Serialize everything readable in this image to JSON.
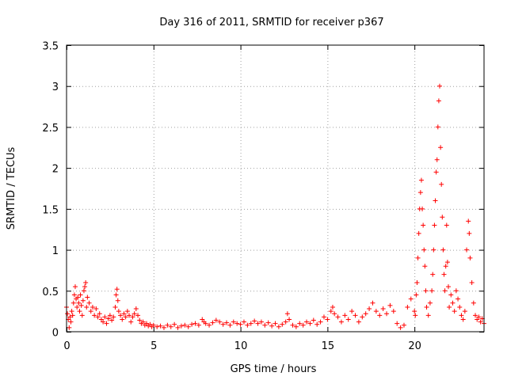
{
  "chart_data": {
    "type": "scatter",
    "title": "Day 316 of 2011, SRMTID for receiver p367",
    "xlabel": "GPS time / hours",
    "ylabel": "SRMTID / TECUs",
    "xlim": [
      0,
      24
    ],
    "ylim": [
      0,
      3.5
    ],
    "x_ticks": [
      0,
      5,
      10,
      15,
      20
    ],
    "x_tick_labels": [
      "0",
      "5",
      "10",
      "15",
      "20"
    ],
    "y_ticks": [
      0,
      0.5,
      1,
      1.5,
      2,
      2.5,
      3,
      3.5
    ],
    "y_tick_labels": [
      "0",
      "0.5",
      "1",
      "1.5",
      "2",
      "2.5",
      "3",
      "3.5"
    ],
    "grid": true,
    "marker": "+",
    "series": [
      {
        "name": "SRMTID",
        "color": "#ff0000",
        "points": [
          [
            0.0,
            0.3
          ],
          [
            0.05,
            0.22
          ],
          [
            0.1,
            0.15
          ],
          [
            0.15,
            0.05
          ],
          [
            0.2,
            0.18
          ],
          [
            0.25,
            0.12
          ],
          [
            0.3,
            0.25
          ],
          [
            0.35,
            0.2
          ],
          [
            0.4,
            0.35
          ],
          [
            0.45,
            0.45
          ],
          [
            0.5,
            0.55
          ],
          [
            0.55,
            0.4
          ],
          [
            0.6,
            0.3
          ],
          [
            0.65,
            0.42
          ],
          [
            0.7,
            0.35
          ],
          [
            0.75,
            0.25
          ],
          [
            0.8,
            0.45
          ],
          [
            0.85,
            0.32
          ],
          [
            0.9,
            0.2
          ],
          [
            0.95,
            0.38
          ],
          [
            1.0,
            0.5
          ],
          [
            1.05,
            0.55
          ],
          [
            1.1,
            0.6
          ],
          [
            1.15,
            0.3
          ],
          [
            1.2,
            0.42
          ],
          [
            1.3,
            0.35
          ],
          [
            1.4,
            0.25
          ],
          [
            1.5,
            0.3
          ],
          [
            1.6,
            0.2
          ],
          [
            1.7,
            0.28
          ],
          [
            1.8,
            0.18
          ],
          [
            1.9,
            0.22
          ],
          [
            2.0,
            0.15
          ],
          [
            2.1,
            0.12
          ],
          [
            2.2,
            0.18
          ],
          [
            2.3,
            0.1
          ],
          [
            2.4,
            0.16
          ],
          [
            2.5,
            0.2
          ],
          [
            2.6,
            0.14
          ],
          [
            2.7,
            0.18
          ],
          [
            2.8,
            0.3
          ],
          [
            2.85,
            0.45
          ],
          [
            2.9,
            0.52
          ],
          [
            2.95,
            0.38
          ],
          [
            3.0,
            0.25
          ],
          [
            3.1,
            0.2
          ],
          [
            3.2,
            0.15
          ],
          [
            3.3,
            0.22
          ],
          [
            3.4,
            0.18
          ],
          [
            3.5,
            0.25
          ],
          [
            3.6,
            0.2
          ],
          [
            3.7,
            0.12
          ],
          [
            3.8,
            0.18
          ],
          [
            3.9,
            0.22
          ],
          [
            4.0,
            0.28
          ],
          [
            4.1,
            0.2
          ],
          [
            4.2,
            0.14
          ],
          [
            4.3,
            0.1
          ],
          [
            4.4,
            0.12
          ],
          [
            4.5,
            0.08
          ],
          [
            4.6,
            0.1
          ],
          [
            4.7,
            0.07
          ],
          [
            4.8,
            0.09
          ],
          [
            4.9,
            0.06
          ],
          [
            5.0,
            0.08
          ],
          [
            5.2,
            0.06
          ],
          [
            5.4,
            0.07
          ],
          [
            5.6,
            0.05
          ],
          [
            5.8,
            0.08
          ],
          [
            6.0,
            0.06
          ],
          [
            6.2,
            0.09
          ],
          [
            6.4,
            0.05
          ],
          [
            6.6,
            0.07
          ],
          [
            6.8,
            0.08
          ],
          [
            7.0,
            0.06
          ],
          [
            7.2,
            0.09
          ],
          [
            7.4,
            0.1
          ],
          [
            7.6,
            0.08
          ],
          [
            7.8,
            0.15
          ],
          [
            7.9,
            0.12
          ],
          [
            8.0,
            0.1
          ],
          [
            8.2,
            0.08
          ],
          [
            8.4,
            0.11
          ],
          [
            8.6,
            0.14
          ],
          [
            8.8,
            0.12
          ],
          [
            9.0,
            0.09
          ],
          [
            9.2,
            0.11
          ],
          [
            9.4,
            0.08
          ],
          [
            9.6,
            0.12
          ],
          [
            9.8,
            0.1
          ],
          [
            10.0,
            0.09
          ],
          [
            10.2,
            0.12
          ],
          [
            10.4,
            0.08
          ],
          [
            10.6,
            0.1
          ],
          [
            10.8,
            0.13
          ],
          [
            11.0,
            0.1
          ],
          [
            11.2,
            0.12
          ],
          [
            11.4,
            0.08
          ],
          [
            11.6,
            0.11
          ],
          [
            11.8,
            0.07
          ],
          [
            12.0,
            0.1
          ],
          [
            12.2,
            0.06
          ],
          [
            12.4,
            0.09
          ],
          [
            12.6,
            0.12
          ],
          [
            12.7,
            0.22
          ],
          [
            12.8,
            0.15
          ],
          [
            13.0,
            0.08
          ],
          [
            13.2,
            0.06
          ],
          [
            13.4,
            0.1
          ],
          [
            13.6,
            0.08
          ],
          [
            13.8,
            0.12
          ],
          [
            14.0,
            0.1
          ],
          [
            14.2,
            0.14
          ],
          [
            14.4,
            0.09
          ],
          [
            14.6,
            0.12
          ],
          [
            14.8,
            0.18
          ],
          [
            15.0,
            0.15
          ],
          [
            15.2,
            0.25
          ],
          [
            15.3,
            0.3
          ],
          [
            15.4,
            0.22
          ],
          [
            15.6,
            0.18
          ],
          [
            15.8,
            0.12
          ],
          [
            16.0,
            0.2
          ],
          [
            16.2,
            0.15
          ],
          [
            16.4,
            0.25
          ],
          [
            16.6,
            0.2
          ],
          [
            16.8,
            0.12
          ],
          [
            17.0,
            0.18
          ],
          [
            17.2,
            0.22
          ],
          [
            17.4,
            0.28
          ],
          [
            17.6,
            0.35
          ],
          [
            17.8,
            0.25
          ],
          [
            18.0,
            0.2
          ],
          [
            18.2,
            0.28
          ],
          [
            18.4,
            0.22
          ],
          [
            18.6,
            0.32
          ],
          [
            18.8,
            0.25
          ],
          [
            19.0,
            0.1
          ],
          [
            19.2,
            0.05
          ],
          [
            19.4,
            0.08
          ],
          [
            19.6,
            0.3
          ],
          [
            19.8,
            0.4
          ],
          [
            20.0,
            0.25
          ],
          [
            20.05,
            0.2
          ],
          [
            20.1,
            0.45
          ],
          [
            20.15,
            0.6
          ],
          [
            20.2,
            0.9
          ],
          [
            20.25,
            1.2
          ],
          [
            20.3,
            1.5
          ],
          [
            20.35,
            1.7
          ],
          [
            20.4,
            1.85
          ],
          [
            20.45,
            1.5
          ],
          [
            20.5,
            1.3
          ],
          [
            20.55,
            1.0
          ],
          [
            20.6,
            0.8
          ],
          [
            20.65,
            0.5
          ],
          [
            20.7,
            0.3
          ],
          [
            20.8,
            0.2
          ],
          [
            20.9,
            0.35
          ],
          [
            21.0,
            0.5
          ],
          [
            21.05,
            0.7
          ],
          [
            21.1,
            1.0
          ],
          [
            21.15,
            1.3
          ],
          [
            21.2,
            1.6
          ],
          [
            21.25,
            1.95
          ],
          [
            21.3,
            2.1
          ],
          [
            21.35,
            2.5
          ],
          [
            21.4,
            2.82
          ],
          [
            21.45,
            3.0
          ],
          [
            21.5,
            2.25
          ],
          [
            21.55,
            1.8
          ],
          [
            21.6,
            1.4
          ],
          [
            21.65,
            1.0
          ],
          [
            21.7,
            0.7
          ],
          [
            21.75,
            0.5
          ],
          [
            21.8,
            0.8
          ],
          [
            21.85,
            1.3
          ],
          [
            21.9,
            0.85
          ],
          [
            21.95,
            0.55
          ],
          [
            22.0,
            0.3
          ],
          [
            22.1,
            0.45
          ],
          [
            22.2,
            0.35
          ],
          [
            22.3,
            0.25
          ],
          [
            22.4,
            0.5
          ],
          [
            22.5,
            0.4
          ],
          [
            22.6,
            0.3
          ],
          [
            22.7,
            0.2
          ],
          [
            22.8,
            0.15
          ],
          [
            22.9,
            0.25
          ],
          [
            23.0,
            1.0
          ],
          [
            23.1,
            1.35
          ],
          [
            23.15,
            1.2
          ],
          [
            23.2,
            0.9
          ],
          [
            23.3,
            0.6
          ],
          [
            23.4,
            0.35
          ],
          [
            23.5,
            0.2
          ],
          [
            23.6,
            0.15
          ],
          [
            23.7,
            0.18
          ],
          [
            23.8,
            0.12
          ],
          [
            23.9,
            0.16
          ],
          [
            24.0,
            0.1
          ]
        ]
      }
    ]
  }
}
